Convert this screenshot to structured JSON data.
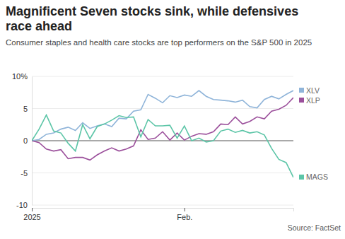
{
  "chart_data": {
    "type": "line",
    "title": "Magnificent Seven stocks sink, while defensives race ahead",
    "subtitle": "Consumer staples and health care stocks are top performers on the S&P 500 in 2025",
    "source": "Source: FactSet",
    "categories": [
      "2025",
      null,
      null,
      null,
      null,
      null,
      null,
      null,
      null,
      null,
      null,
      null,
      null,
      null,
      null,
      null,
      null,
      null,
      null,
      null,
      null,
      "Feb.",
      null,
      null,
      null,
      null,
      null,
      null,
      null,
      null,
      null,
      null,
      null,
      null,
      null,
      null,
      null
    ],
    "series": [
      {
        "name": "XLV",
        "color": "#8fb4d9",
        "values": [
          0,
          0.2,
          1.0,
          1.2,
          1.8,
          2.1,
          1.6,
          2.8,
          1.9,
          2.3,
          2.6,
          2.2,
          3.5,
          3.4,
          4.6,
          4.8,
          7.2,
          6.6,
          5.9,
          7.0,
          6.7,
          7.1,
          6.9,
          7.8,
          6.9,
          6.4,
          6.3,
          6.2,
          6.0,
          6.3,
          5.3,
          5.1,
          6.4,
          6.9,
          6.5,
          7.2,
          7.8
        ]
      },
      {
        "name": "XLP",
        "color": "#9b4f9b",
        "values": [
          0,
          -0.3,
          -1.3,
          -1.6,
          -1.4,
          -2.8,
          -2.6,
          -2.6,
          -3.0,
          -2.2,
          -1.6,
          -1.1,
          -1.6,
          -1.3,
          -0.8,
          1.7,
          0.2,
          0.4,
          1.4,
          0.1,
          1.2,
          0.1,
          0.7,
          1.1,
          1.0,
          1.4,
          2.6,
          2.5,
          3.7,
          2.6,
          3.0,
          3.7,
          3.4,
          4.6,
          4.9,
          5.5,
          6.7
        ]
      },
      {
        "name": "MAGS",
        "color": "#5cc5a7",
        "values": [
          0,
          1.8,
          4.0,
          1.5,
          1.2,
          -0.4,
          -1.6,
          2.5,
          0.3,
          2.2,
          2.6,
          3.2,
          3.9,
          3.6,
          3.7,
          0.6,
          3.3,
          2.3,
          2.3,
          2.4,
          0.4,
          2.3,
          0.0,
          0.4,
          -0.2,
          0.0,
          1.5,
          1.8,
          1.3,
          1.6,
          1.2,
          1.4,
          0.9,
          -1.2,
          -2.9,
          -3.4,
          -5.7
        ]
      }
    ],
    "ylim": [
      -10,
      10
    ],
    "yticks": [
      -10,
      -5,
      0,
      5,
      {
        "value": 10,
        "label": "10%"
      }
    ],
    "grid": true,
    "legend": "right"
  }
}
